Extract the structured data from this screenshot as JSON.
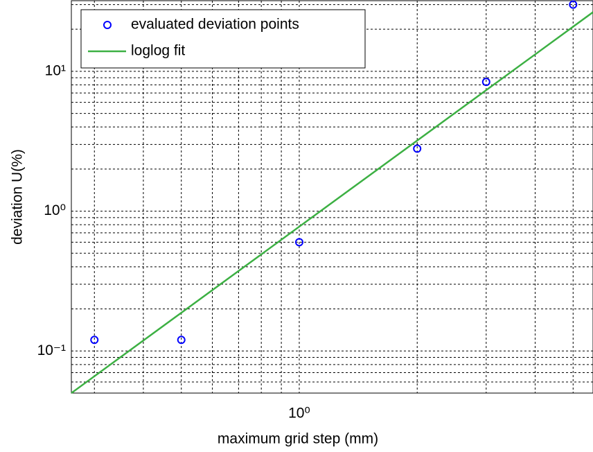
{
  "chart_data": {
    "type": "scatter",
    "xlabel": "maximum grid step (mm)",
    "ylabel": "deviation U(%)",
    "xscale": "log",
    "yscale": "log",
    "xlim": [
      0.262,
      5.62
    ],
    "ylim": [
      0.05,
      32
    ],
    "xticks": [
      {
        "value": 1,
        "label": "10⁰"
      }
    ],
    "yticks": [
      {
        "value": 0.1,
        "label": "10⁻¹"
      },
      {
        "value": 1,
        "label": "10⁰"
      },
      {
        "value": 10,
        "label": "10¹"
      }
    ],
    "xminorticks": [
      0.3,
      0.4,
      0.5,
      0.6,
      0.7,
      0.8,
      0.9,
      2,
      3,
      4,
      5
    ],
    "yminorticks": [
      0.06,
      0.07,
      0.08,
      0.09,
      0.2,
      0.3,
      0.4,
      0.5,
      0.6,
      0.7,
      0.8,
      0.9,
      2,
      3,
      4,
      5,
      6,
      7,
      8,
      9,
      20,
      30
    ],
    "grid": true,
    "legend": "upper left",
    "series": [
      {
        "name": "evaluated deviation points",
        "style": "markers",
        "color": "#0000ff",
        "x": [
          0.3,
          0.5,
          1,
          2,
          3,
          5
        ],
        "values": [
          0.12,
          0.12,
          0.6,
          2.8,
          8.4,
          30
        ]
      },
      {
        "name": "loglog fit",
        "style": "line",
        "color": "#3cb043",
        "x": [
          0.262,
          5.62
        ],
        "values": [
          0.05,
          26.5
        ]
      }
    ]
  }
}
